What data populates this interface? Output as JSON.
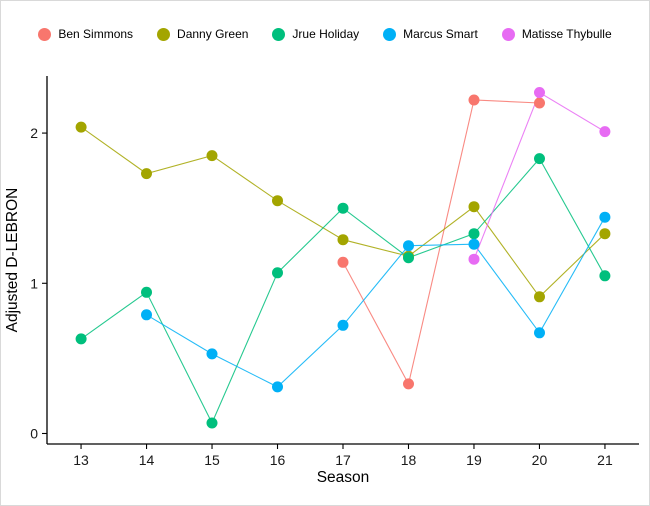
{
  "figure": {
    "background": "#ffffff",
    "border_color": "#d9d9d9"
  },
  "chart_data": {
    "type": "line",
    "title": "",
    "xlabel": "Season",
    "ylabel": "Adjusted D-LEBRON",
    "grid": false,
    "legend_position": "top",
    "x": [
      13,
      14,
      15,
      16,
      17,
      18,
      19,
      20,
      21
    ],
    "xticks": [
      13,
      14,
      15,
      16,
      17,
      18,
      19,
      20,
      21
    ],
    "yticks": [
      0,
      1,
      2
    ],
    "xlim": [
      12.48,
      21.52
    ],
    "ylim": [
      -0.07,
      2.38
    ],
    "series": [
      {
        "name": "Ben Simmons",
        "color": "#F8766D",
        "values": [
          null,
          null,
          null,
          null,
          1.14,
          0.33,
          2.22,
          2.2,
          null
        ]
      },
      {
        "name": "Danny Green",
        "color": "#A3A500",
        "values": [
          2.04,
          1.73,
          1.85,
          1.55,
          1.29,
          1.18,
          1.51,
          0.91,
          1.33
        ]
      },
      {
        "name": "Jrue Holiday",
        "color": "#00BF7D",
        "values": [
          0.63,
          0.94,
          0.07,
          1.07,
          1.5,
          1.17,
          1.33,
          1.83,
          1.05
        ]
      },
      {
        "name": "Marcus Smart",
        "color": "#00B0F6",
        "values": [
          null,
          0.79,
          0.53,
          0.31,
          0.72,
          1.25,
          1.26,
          0.67,
          1.44
        ]
      },
      {
        "name": "Matisse Thybulle",
        "color": "#E76BF3",
        "values": [
          null,
          null,
          null,
          null,
          null,
          null,
          1.16,
          2.27,
          2.01
        ]
      }
    ]
  }
}
